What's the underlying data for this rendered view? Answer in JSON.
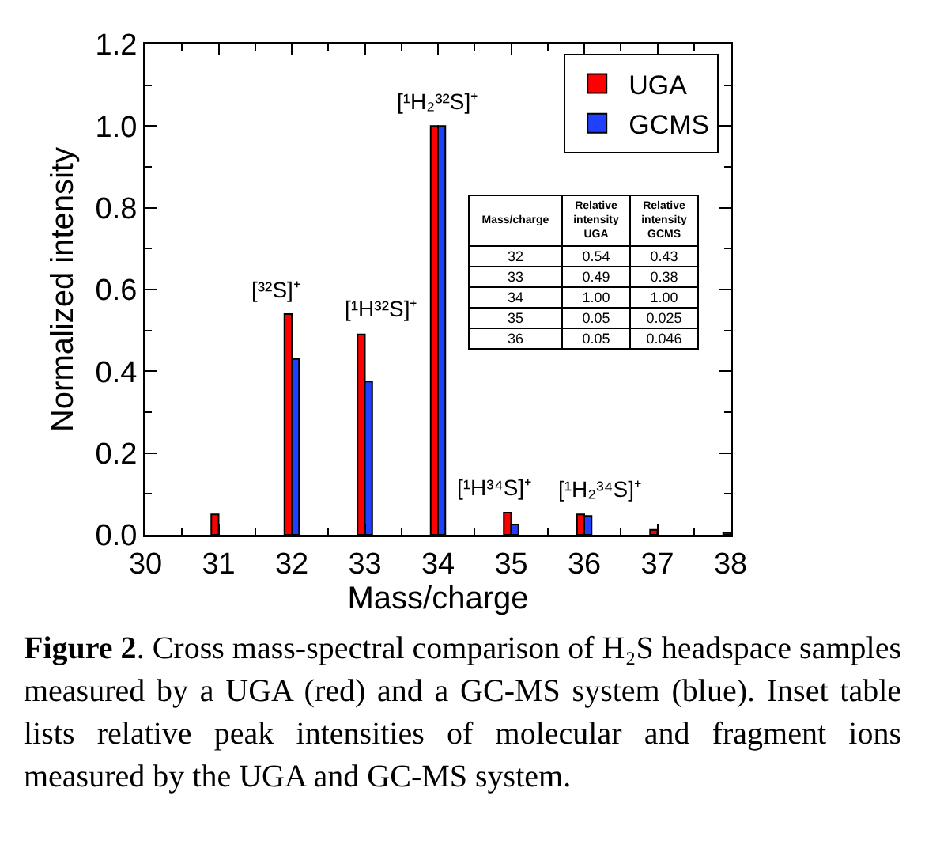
{
  "chart_data": {
    "type": "bar",
    "x": [
      31,
      32,
      33,
      34,
      35,
      36,
      37,
      38
    ],
    "series": [
      {
        "name": "UGA",
        "color": "#ff0000",
        "values": [
          0.05,
          0.54,
          0.49,
          1.0,
          0.054,
          0.05,
          0.012,
          0.005
        ]
      },
      {
        "name": "GCMS",
        "color": "#2040ff",
        "values": [
          null,
          0.43,
          0.375,
          1.0,
          0.025,
          0.046,
          null,
          null
        ]
      }
    ],
    "xlabel": "Mass/charge",
    "ylabel": "Normalized intensity",
    "xlim": [
      30,
      38
    ],
    "xticks": [
      30,
      31,
      32,
      33,
      34,
      35,
      36,
      37,
      38
    ],
    "ylim": [
      0,
      1.2
    ],
    "yticks": [
      {
        "value": 0,
        "label": "0.0"
      },
      0.2,
      0.4,
      0.6,
      0.8,
      {
        "value": 1,
        "label": "1.0"
      },
      1.2
    ],
    "legend": "top right",
    "grid": false,
    "annotations": [
      {
        "text": "[³²S]⁺",
        "x": 32,
        "y": 0.54
      },
      {
        "text": "[¹H³²S]⁺",
        "x": 33,
        "y": 0.49
      },
      {
        "text": "[¹H₂³²S]⁺",
        "x": 34,
        "y": 1.0
      },
      {
        "text": "[¹H³⁴S]⁺",
        "x": 35,
        "y": 0.054
      },
      {
        "text": "[¹H₂³⁴S]⁺",
        "x": 36,
        "y": 0.05
      },
      "Mass/charge",
      "Relative intensity UGA",
      "Relative intensity GCMS",
      "32",
      "0.54",
      "0.43",
      "33",
      "0.49",
      "0.38",
      "34",
      "1.00",
      "1.00",
      "35",
      "0.05",
      "0.025",
      "36",
      "0.05",
      "0.046",
      "Figure 2. Cross mass-spectral comparison of H₂S headspace samples measured by a UGA (red) and a GC-MS system (blue). Inset table lists relative peak intensities of molecular and fragment ions measured by the UGA and GC-MS system."
    ]
  }
}
